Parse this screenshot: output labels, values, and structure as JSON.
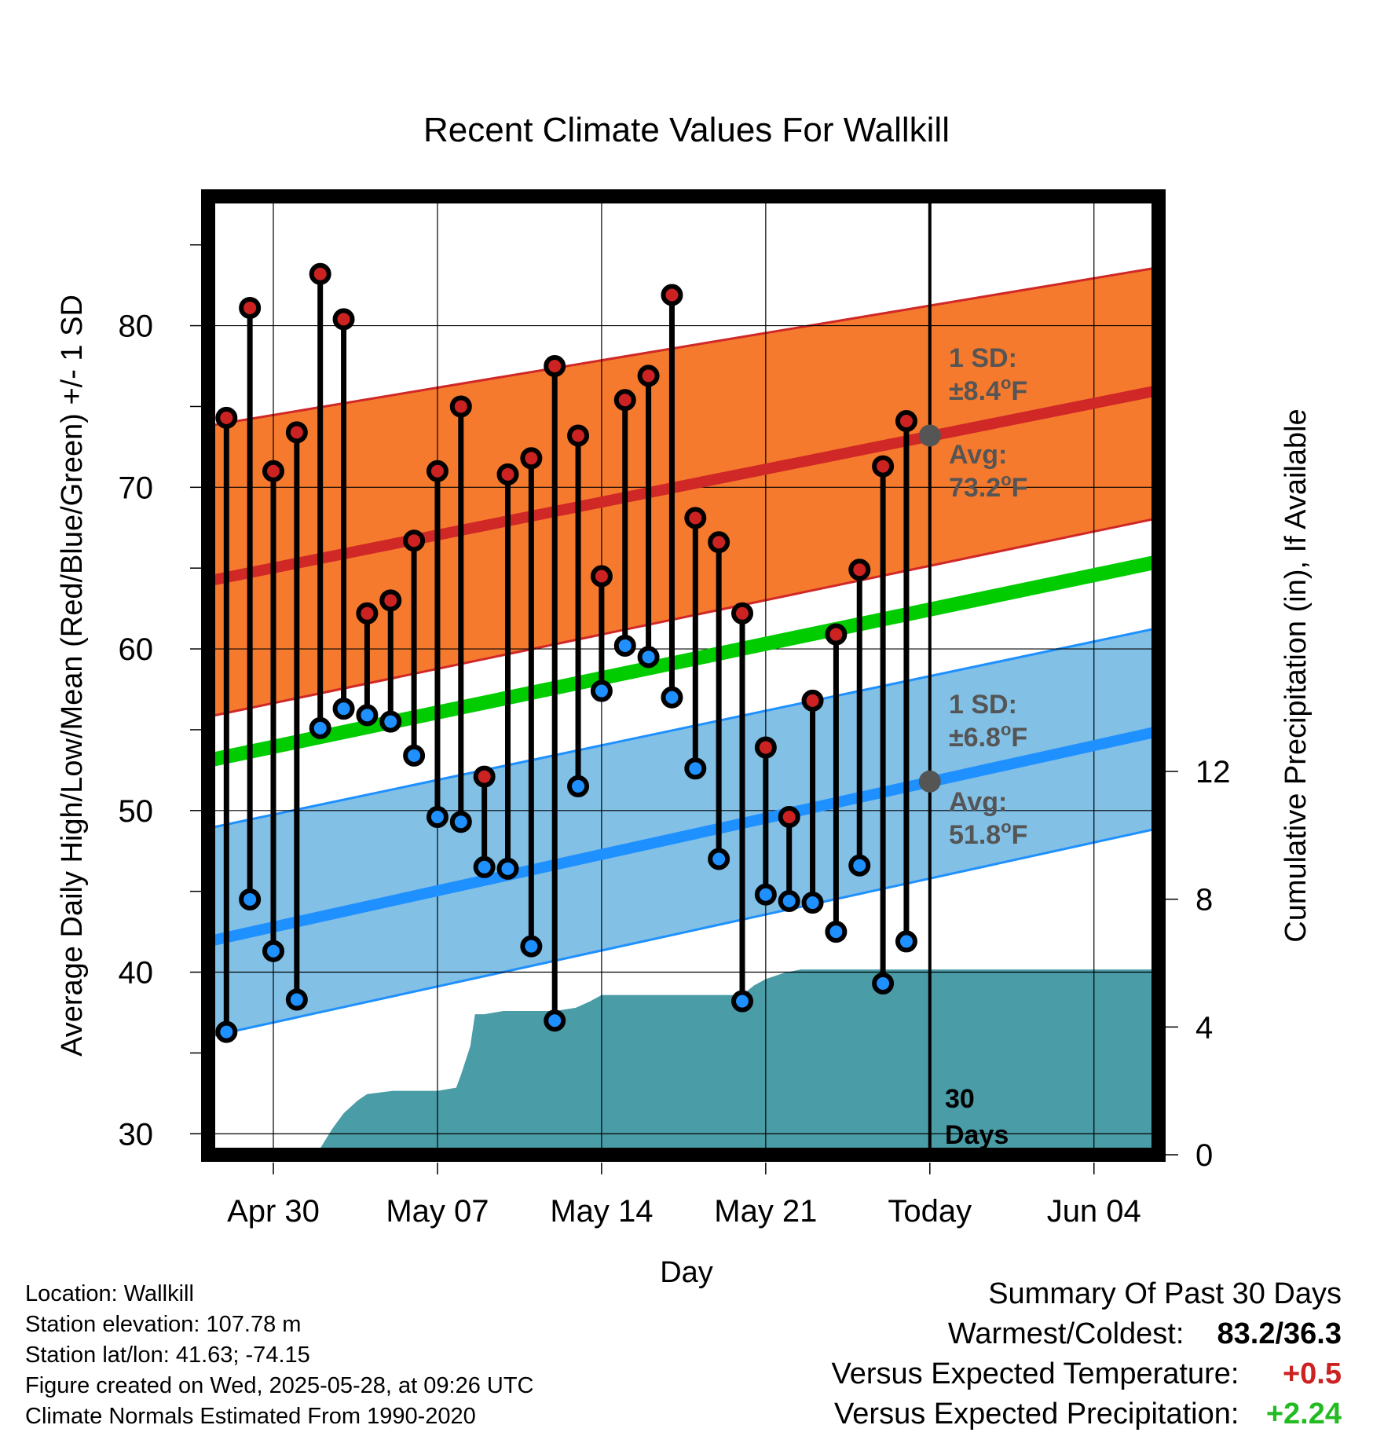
{
  "chart_data": {
    "type": "line",
    "title": "Recent Climate Values For Wallkill",
    "xlabel": "Day",
    "ylabel": "Average Daily High/Low/Mean (Red/Blue/Green) +/- 1 SD",
    "y2label": "Cumulative Precipitation (in), If Available",
    "ylim": [
      28.7,
      88
    ],
    "y2lim": [
      0,
      30
    ],
    "yticks": [
      "30",
      "40",
      "50",
      "60",
      "70",
      "80"
    ],
    "y2ticks": [
      "0",
      "4",
      "8",
      "12"
    ],
    "xlim": [
      -4.3,
      37.8
    ],
    "xticks": [
      {
        "day": 0,
        "label": "Apr 30"
      },
      {
        "day": 7,
        "label": "May 07"
      },
      {
        "day": 14,
        "label": "May 14"
      },
      {
        "day": 21,
        "label": "May 21"
      },
      {
        "day": 28,
        "label": "Today"
      },
      {
        "day": 35,
        "label": "Jun 04"
      }
    ],
    "today_day": 28,
    "today_label": [
      "30",
      "Days"
    ],
    "grid": true,
    "x_day_zero": "Apr 30",
    "normal_high": {
      "start": 64.2,
      "end": 76.0,
      "sd_low_start": 55.8,
      "sd_low_end": 68.1,
      "sd_high_start": 73.8,
      "sd_high_end": 83.6
    },
    "normal_low": {
      "start": 41.9,
      "end": 54.9,
      "sd_low_start": 36.0,
      "sd_low_end": 48.9,
      "sd_high_start": 48.9,
      "sd_high_end": 61.3
    },
    "normal_mean": {
      "start": 53.1,
      "end": 65.4
    },
    "daily_high": [
      {
        "day": -2,
        "value": 74.3
      },
      {
        "day": -1,
        "value": 81.1
      },
      {
        "day": 0,
        "value": 71.0
      },
      {
        "day": 1,
        "value": 73.4
      },
      {
        "day": 2,
        "value": 83.2
      },
      {
        "day": 3,
        "value": 80.4
      },
      {
        "day": 4,
        "value": 62.2
      },
      {
        "day": 5,
        "value": 63.0
      },
      {
        "day": 6,
        "value": 66.7
      },
      {
        "day": 7,
        "value": 71.0
      },
      {
        "day": 8,
        "value": 75.0
      },
      {
        "day": 9,
        "value": 52.1
      },
      {
        "day": 10,
        "value": 70.8
      },
      {
        "day": 11,
        "value": 71.8
      },
      {
        "day": 12,
        "value": 77.5
      },
      {
        "day": 13,
        "value": 73.2
      },
      {
        "day": 14,
        "value": 64.5
      },
      {
        "day": 15,
        "value": 75.4
      },
      {
        "day": 16,
        "value": 76.9
      },
      {
        "day": 17,
        "value": 81.9
      },
      {
        "day": 18,
        "value": 68.1
      },
      {
        "day": 19,
        "value": 66.6
      },
      {
        "day": 20,
        "value": 62.2
      },
      {
        "day": 21,
        "value": 53.9
      },
      {
        "day": 22,
        "value": 49.6
      },
      {
        "day": 23,
        "value": 56.8
      },
      {
        "day": 24,
        "value": 60.9
      },
      {
        "day": 25,
        "value": 64.9
      },
      {
        "day": 26,
        "value": 71.3
      },
      {
        "day": 27,
        "value": 74.1
      }
    ],
    "daily_low": [
      {
        "day": -2,
        "value": 36.3
      },
      {
        "day": -1,
        "value": 44.5
      },
      {
        "day": 0,
        "value": 41.3
      },
      {
        "day": 1,
        "value": 38.3
      },
      {
        "day": 2,
        "value": 55.1
      },
      {
        "day": 3,
        "value": 56.3
      },
      {
        "day": 4,
        "value": 55.9
      },
      {
        "day": 5,
        "value": 55.5
      },
      {
        "day": 6,
        "value": 53.4
      },
      {
        "day": 7,
        "value": 49.6
      },
      {
        "day": 8,
        "value": 49.3
      },
      {
        "day": 9,
        "value": 46.5
      },
      {
        "day": 10,
        "value": 46.4
      },
      {
        "day": 11,
        "value": 41.6
      },
      {
        "day": 12,
        "value": 37.0
      },
      {
        "day": 13,
        "value": 51.5
      },
      {
        "day": 14,
        "value": 57.4
      },
      {
        "day": 15,
        "value": 60.2
      },
      {
        "day": 16,
        "value": 59.5
      },
      {
        "day": 17,
        "value": 57.0
      },
      {
        "day": 18,
        "value": 52.6
      },
      {
        "day": 19,
        "value": 47.0
      },
      {
        "day": 20,
        "value": 38.2
      },
      {
        "day": 21,
        "value": 44.8
      },
      {
        "day": 22,
        "value": 44.4
      },
      {
        "day": 23,
        "value": 44.3
      },
      {
        "day": 24,
        "value": 42.5
      },
      {
        "day": 25,
        "value": 46.6
      },
      {
        "day": 26,
        "value": 39.3
      },
      {
        "day": 27,
        "value": 41.9
      }
    ],
    "precip_cumulative": [
      {
        "day": 1.7,
        "value": 0
      },
      {
        "day": 2.0,
        "value": 0.2
      },
      {
        "day": 2.5,
        "value": 0.8
      },
      {
        "day": 3.0,
        "value": 1.3
      },
      {
        "day": 3.6,
        "value": 1.7
      },
      {
        "day": 4.0,
        "value": 1.9
      },
      {
        "day": 5.1,
        "value": 2.0
      },
      {
        "day": 5.5,
        "value": 2.0
      },
      {
        "day": 6.0,
        "value": 2.0
      },
      {
        "day": 7.0,
        "value": 2.0
      },
      {
        "day": 7.8,
        "value": 2.1
      },
      {
        "day": 8.0,
        "value": 2.5
      },
      {
        "day": 8.4,
        "value": 3.4
      },
      {
        "day": 8.6,
        "value": 4.4
      },
      {
        "day": 9.0,
        "value": 4.4
      },
      {
        "day": 9.8,
        "value": 4.5
      },
      {
        "day": 11.0,
        "value": 4.5
      },
      {
        "day": 12.0,
        "value": 4.5
      },
      {
        "day": 12.9,
        "value": 4.6
      },
      {
        "day": 13.5,
        "value": 4.8
      },
      {
        "day": 14.0,
        "value": 5.0
      },
      {
        "day": 20.0,
        "value": 5.0
      },
      {
        "day": 20.5,
        "value": 5.3
      },
      {
        "day": 21.0,
        "value": 5.5
      },
      {
        "day": 21.8,
        "value": 5.7
      },
      {
        "day": 22.5,
        "value": 5.8
      },
      {
        "day": 24.0,
        "value": 5.8
      },
      {
        "day": 37.8,
        "value": 5.8
      }
    ],
    "annotations": {
      "high_sd_line1": "1 SD:",
      "high_sd_line2": "±8.4",
      "high_sd_sup": "o",
      "high_sd_unit": "F",
      "high_avg_line1": "Avg:",
      "high_avg_line2": "73.2",
      "high_avg_sup": "o",
      "high_avg_unit": "F",
      "high_avg_value": 73.2,
      "low_sd_line1": "1 SD:",
      "low_sd_line2": "±6.8",
      "low_sd_sup": "o",
      "low_sd_unit": "F",
      "low_avg_line1": "Avg:",
      "low_avg_line2": "51.8",
      "low_avg_sup": "o",
      "low_avg_unit": "F",
      "low_avg_value": 51.8
    },
    "colors": {
      "high_band": "#f57a2e",
      "high_line": "#d02727",
      "low_band": "#82c0e6",
      "low_line": "#1e90ff",
      "mean_line": "#00cc00",
      "precip": "#4a9ca7",
      "high_dot": "#cc2222",
      "low_dot": "#1e90ff",
      "avg_dot": "#555555"
    }
  },
  "footer": {
    "location": "Location: Wallkill",
    "elevation": "Station elevation: 107.78 m",
    "latlon": "Station lat/lon: 41.63; -74.15",
    "created": "Figure created on Wed, 2025-05-28, at 09:26 UTC",
    "normals": "Climate Normals Estimated From 1990-2020"
  },
  "summary": {
    "title": "Summary Of Past 30 Days",
    "warm_cold_label": "Warmest/Coldest:",
    "warm_cold_value": "83.2/36.3",
    "temp_label": "Versus Expected Temperature:",
    "temp_value": "+0.5",
    "temp_color": "#cc2222",
    "precip_label": "Versus Expected Precipitation:",
    "precip_value": "+2.24",
    "precip_color": "#22bb22"
  }
}
